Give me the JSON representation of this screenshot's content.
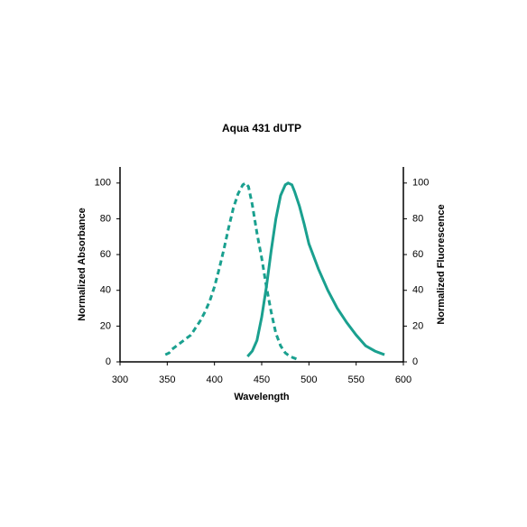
{
  "chart_data": {
    "type": "line",
    "title": "Aqua 431 dUTP",
    "x_label": "Wavelength",
    "y_label": "Normalized Absorbance",
    "y2_label": "Normalized Fluorescence",
    "xlim": [
      300,
      600
    ],
    "xticks": [
      300,
      350,
      400,
      450,
      500,
      550,
      600
    ],
    "ylim": [
      0,
      110
    ],
    "yticks": [
      0,
      20,
      40,
      60,
      80,
      100
    ],
    "y2lim": [
      0,
      110
    ],
    "y2ticks": [
      0,
      20,
      40,
      60,
      80,
      100
    ],
    "series": [
      {
        "color": "#1aa08f",
        "linestyle": "dashed",
        "axis": "y",
        "x": [
          348,
          352,
          355,
          360,
          365,
          370,
          375,
          380,
          385,
          390,
          395,
          400,
          405,
          410,
          415,
          420,
          425,
          430,
          433,
          436,
          440,
          445,
          450,
          455,
          460,
          465,
          470,
          475,
          480,
          485,
          490
        ],
        "values": [
          4,
          5,
          7,
          9,
          11,
          13,
          15,
          19,
          23,
          28,
          34,
          42,
          52,
          63,
          75,
          86,
          94,
          99,
          100,
          98,
          88,
          72,
          58,
          42,
          28,
          16,
          9,
          5,
          3,
          2,
          1
        ]
      },
      {
        "color": "#1aa08f",
        "linestyle": "solid",
        "axis": "y2",
        "x": [
          435,
          440,
          445,
          450,
          455,
          460,
          465,
          470,
          475,
          478,
          482,
          485,
          490,
          495,
          500,
          510,
          520,
          530,
          540,
          550,
          560,
          570,
          580
        ],
        "values": [
          3,
          6,
          12,
          25,
          42,
          62,
          80,
          93,
          99,
          100,
          99,
          95,
          87,
          77,
          66,
          52,
          40,
          30,
          22,
          15,
          9,
          6,
          4
        ]
      }
    ]
  }
}
